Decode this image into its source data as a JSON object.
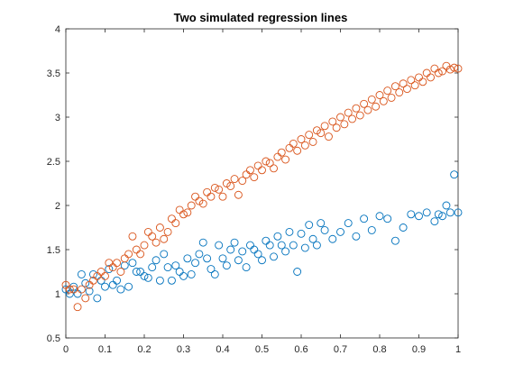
{
  "chart_data": {
    "type": "scatter",
    "title": "Two simulated regression lines",
    "xlabel": "",
    "ylabel": "",
    "xlim": [
      0,
      1
    ],
    "ylim": [
      0.5,
      4
    ],
    "xticks": [
      "0",
      "0.1",
      "0.2",
      "0.3",
      "0.4",
      "0.5",
      "0.6",
      "0.7",
      "0.8",
      "0.9",
      "1"
    ],
    "yticks": [
      "0.5",
      "1",
      "1.5",
      "2",
      "2.5",
      "3",
      "3.5",
      "4"
    ],
    "grid": false,
    "legend": "none",
    "marker": "open-circle",
    "series": [
      {
        "color": "#0072BD",
        "points": [
          [
            0.0,
            1.05
          ],
          [
            0.01,
            1.0
          ],
          [
            0.02,
            1.08
          ],
          [
            0.03,
            1.0
          ],
          [
            0.04,
            1.22
          ],
          [
            0.05,
            1.12
          ],
          [
            0.06,
            1.03
          ],
          [
            0.07,
            1.22
          ],
          [
            0.08,
            0.95
          ],
          [
            0.09,
            1.15
          ],
          [
            0.1,
            1.08
          ],
          [
            0.11,
            1.28
          ],
          [
            0.12,
            1.1
          ],
          [
            0.13,
            1.15
          ],
          [
            0.14,
            1.05
          ],
          [
            0.15,
            1.32
          ],
          [
            0.16,
            1.08
          ],
          [
            0.17,
            1.35
          ],
          [
            0.18,
            1.25
          ],
          [
            0.19,
            1.25
          ],
          [
            0.2,
            1.2
          ],
          [
            0.21,
            1.18
          ],
          [
            0.22,
            1.3
          ],
          [
            0.23,
            1.38
          ],
          [
            0.24,
            1.15
          ],
          [
            0.25,
            1.45
          ],
          [
            0.26,
            1.3
          ],
          [
            0.27,
            1.15
          ],
          [
            0.28,
            1.32
          ],
          [
            0.29,
            1.25
          ],
          [
            0.3,
            1.2
          ],
          [
            0.31,
            1.4
          ],
          [
            0.32,
            1.22
          ],
          [
            0.33,
            1.35
          ],
          [
            0.34,
            1.45
          ],
          [
            0.35,
            1.58
          ],
          [
            0.36,
            1.4
          ],
          [
            0.37,
            1.28
          ],
          [
            0.38,
            1.22
          ],
          [
            0.39,
            1.55
          ],
          [
            0.4,
            1.4
          ],
          [
            0.41,
            1.32
          ],
          [
            0.42,
            1.5
          ],
          [
            0.43,
            1.58
          ],
          [
            0.44,
            1.38
          ],
          [
            0.45,
            1.48
          ],
          [
            0.46,
            1.3
          ],
          [
            0.47,
            1.55
          ],
          [
            0.48,
            1.5
          ],
          [
            0.49,
            1.45
          ],
          [
            0.5,
            1.38
          ],
          [
            0.51,
            1.6
          ],
          [
            0.52,
            1.55
          ],
          [
            0.53,
            1.42
          ],
          [
            0.54,
            1.65
          ],
          [
            0.55,
            1.55
          ],
          [
            0.56,
            1.48
          ],
          [
            0.57,
            1.7
          ],
          [
            0.58,
            1.55
          ],
          [
            0.59,
            1.25
          ],
          [
            0.6,
            1.68
          ],
          [
            0.61,
            1.52
          ],
          [
            0.62,
            1.78
          ],
          [
            0.63,
            1.62
          ],
          [
            0.64,
            1.55
          ],
          [
            0.65,
            1.8
          ],
          [
            0.66,
            1.72
          ],
          [
            0.68,
            1.62
          ],
          [
            0.7,
            1.7
          ],
          [
            0.72,
            1.8
          ],
          [
            0.74,
            1.65
          ],
          [
            0.76,
            1.85
          ],
          [
            0.78,
            1.72
          ],
          [
            0.8,
            1.88
          ],
          [
            0.82,
            1.85
          ],
          [
            0.84,
            1.6
          ],
          [
            0.86,
            1.75
          ],
          [
            0.88,
            1.9
          ],
          [
            0.9,
            1.88
          ],
          [
            0.92,
            1.92
          ],
          [
            0.94,
            1.82
          ],
          [
            0.95,
            1.9
          ],
          [
            0.96,
            1.88
          ],
          [
            0.97,
            2.0
          ],
          [
            0.98,
            1.92
          ],
          [
            0.99,
            2.35
          ],
          [
            1.0,
            1.92
          ]
        ]
      },
      {
        "color": "#D95319",
        "points": [
          [
            0.0,
            1.1
          ],
          [
            0.01,
            1.05
          ],
          [
            0.02,
            1.05
          ],
          [
            0.03,
            0.85
          ],
          [
            0.04,
            1.05
          ],
          [
            0.05,
            0.95
          ],
          [
            0.06,
            1.1
          ],
          [
            0.07,
            1.15
          ],
          [
            0.08,
            1.2
          ],
          [
            0.09,
            1.25
          ],
          [
            0.1,
            1.2
          ],
          [
            0.11,
            1.35
          ],
          [
            0.12,
            1.3
          ],
          [
            0.13,
            1.35
          ],
          [
            0.14,
            1.25
          ],
          [
            0.15,
            1.4
          ],
          [
            0.16,
            1.45
          ],
          [
            0.17,
            1.65
          ],
          [
            0.18,
            1.5
          ],
          [
            0.19,
            1.45
          ],
          [
            0.2,
            1.55
          ],
          [
            0.21,
            1.7
          ],
          [
            0.22,
            1.65
          ],
          [
            0.23,
            1.58
          ],
          [
            0.24,
            1.75
          ],
          [
            0.25,
            1.62
          ],
          [
            0.26,
            1.7
          ],
          [
            0.27,
            1.85
          ],
          [
            0.28,
            1.8
          ],
          [
            0.29,
            1.95
          ],
          [
            0.3,
            1.9
          ],
          [
            0.31,
            1.92
          ],
          [
            0.32,
            2.0
          ],
          [
            0.33,
            2.1
          ],
          [
            0.34,
            2.05
          ],
          [
            0.35,
            2.02
          ],
          [
            0.36,
            2.15
          ],
          [
            0.37,
            2.1
          ],
          [
            0.38,
            2.2
          ],
          [
            0.39,
            2.18
          ],
          [
            0.4,
            2.1
          ],
          [
            0.41,
            2.25
          ],
          [
            0.42,
            2.22
          ],
          [
            0.43,
            2.3
          ],
          [
            0.44,
            2.12
          ],
          [
            0.45,
            2.28
          ],
          [
            0.46,
            2.35
          ],
          [
            0.47,
            2.4
          ],
          [
            0.48,
            2.32
          ],
          [
            0.49,
            2.45
          ],
          [
            0.5,
            2.4
          ],
          [
            0.51,
            2.5
          ],
          [
            0.52,
            2.48
          ],
          [
            0.53,
            2.42
          ],
          [
            0.54,
            2.55
          ],
          [
            0.55,
            2.6
          ],
          [
            0.56,
            2.52
          ],
          [
            0.57,
            2.65
          ],
          [
            0.58,
            2.7
          ],
          [
            0.59,
            2.62
          ],
          [
            0.6,
            2.75
          ],
          [
            0.61,
            2.68
          ],
          [
            0.62,
            2.8
          ],
          [
            0.63,
            2.72
          ],
          [
            0.64,
            2.85
          ],
          [
            0.65,
            2.82
          ],
          [
            0.66,
            2.9
          ],
          [
            0.67,
            2.78
          ],
          [
            0.68,
            2.95
          ],
          [
            0.69,
            2.88
          ],
          [
            0.7,
            3.0
          ],
          [
            0.71,
            2.92
          ],
          [
            0.72,
            3.05
          ],
          [
            0.73,
            2.98
          ],
          [
            0.74,
            3.1
          ],
          [
            0.75,
            3.02
          ],
          [
            0.76,
            3.15
          ],
          [
            0.77,
            3.08
          ],
          [
            0.78,
            3.2
          ],
          [
            0.79,
            3.12
          ],
          [
            0.8,
            3.25
          ],
          [
            0.81,
            3.18
          ],
          [
            0.82,
            3.3
          ],
          [
            0.83,
            3.22
          ],
          [
            0.84,
            3.35
          ],
          [
            0.85,
            3.28
          ],
          [
            0.86,
            3.38
          ],
          [
            0.87,
            3.32
          ],
          [
            0.88,
            3.42
          ],
          [
            0.89,
            3.36
          ],
          [
            0.9,
            3.45
          ],
          [
            0.91,
            3.4
          ],
          [
            0.92,
            3.5
          ],
          [
            0.93,
            3.45
          ],
          [
            0.94,
            3.55
          ],
          [
            0.95,
            3.5
          ],
          [
            0.96,
            3.52
          ],
          [
            0.97,
            3.58
          ],
          [
            0.98,
            3.54
          ],
          [
            0.99,
            3.56
          ],
          [
            1.0,
            3.55
          ]
        ]
      }
    ]
  }
}
